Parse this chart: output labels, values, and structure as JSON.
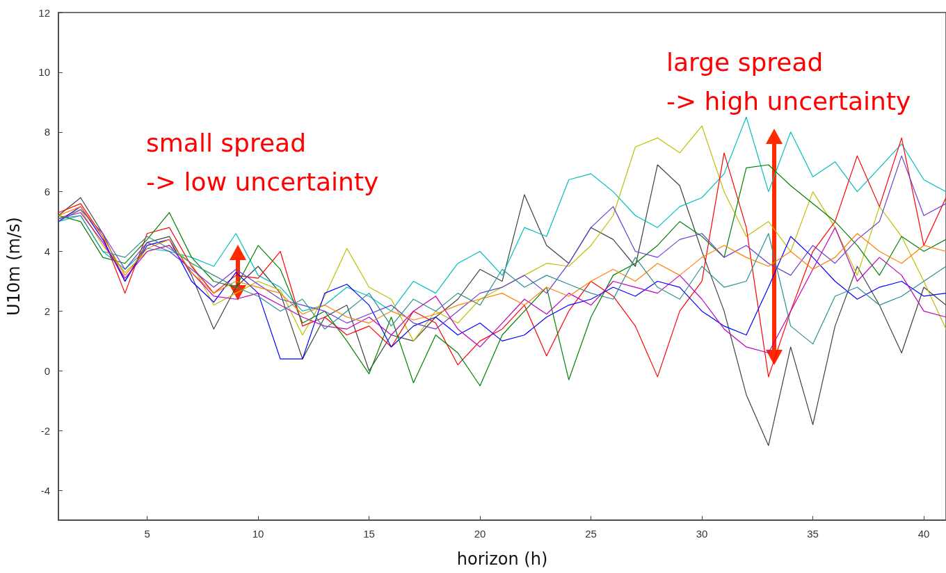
{
  "chart_data": {
    "type": "line",
    "xlabel": "horizon (h)",
    "ylabel": "U10m (m/s)",
    "x": [
      1,
      2,
      3,
      4,
      5,
      6,
      7,
      8,
      9,
      10,
      11,
      12,
      13,
      14,
      15,
      16,
      17,
      18,
      19,
      20,
      21,
      22,
      23,
      24,
      25,
      26,
      27,
      28,
      29,
      30,
      31,
      32,
      33,
      34,
      35,
      36,
      37,
      38,
      39,
      40,
      41
    ],
    "xlim": [
      1,
      41
    ],
    "xticks": [
      5,
      10,
      15,
      20,
      25,
      30,
      35,
      40
    ],
    "ylim": [
      -5,
      12
    ],
    "yticks": [
      -4,
      -2,
      0,
      2,
      4,
      6,
      8,
      10,
      12
    ],
    "grid": false,
    "marker": "none",
    "line_style": "solid",
    "annotations": [
      "small spread\n-> low uncertainty",
      "large spread\n-> high uncertainty"
    ],
    "series": [
      {
        "color": "#404040",
        "values": [
          5.2,
          5.8,
          4.6,
          3.0,
          4.3,
          4.5,
          3.2,
          1.4,
          2.8,
          3.5,
          2.6,
          0.4,
          1.8,
          2.2,
          0.0,
          1.2,
          1.0,
          1.8,
          2.4,
          3.4,
          3.0,
          5.9,
          4.2,
          3.6,
          4.8,
          4.4,
          3.5,
          6.9,
          6.2,
          4.0,
          2.0,
          -0.8,
          -2.5,
          0.8,
          -1.8,
          1.5,
          3.5,
          2.2,
          0.6,
          2.8,
          2.2
        ]
      },
      {
        "color": "#00bfbf",
        "values": [
          5.0,
          5.2,
          4.0,
          3.4,
          4.1,
          4.0,
          3.8,
          3.5,
          4.6,
          3.2,
          2.8,
          2.0,
          2.2,
          2.8,
          2.5,
          2.0,
          3.0,
          2.6,
          3.6,
          4.0,
          3.2,
          4.8,
          4.5,
          6.4,
          6.6,
          6.0,
          5.2,
          4.8,
          5.5,
          5.8,
          6.6,
          8.5,
          6.0,
          8.0,
          6.5,
          7.0,
          6.0,
          6.8,
          7.6,
          6.4,
          6.0
        ]
      },
      {
        "color": "#bfbf00",
        "values": [
          5.1,
          5.4,
          4.2,
          3.3,
          4.0,
          4.2,
          3.6,
          2.2,
          2.6,
          3.0,
          2.7,
          1.2,
          2.5,
          4.1,
          2.8,
          2.4,
          1.0,
          2.0,
          1.6,
          2.4,
          2.8,
          3.2,
          3.6,
          3.5,
          4.2,
          5.2,
          7.5,
          7.8,
          7.3,
          8.2,
          6.0,
          4.5,
          5.0,
          4.0,
          6.0,
          4.8,
          3.2,
          5.5,
          4.5,
          3.0,
          1.4
        ]
      },
      {
        "color": "#ff0000",
        "values": [
          5.3,
          5.6,
          4.5,
          2.6,
          4.6,
          4.8,
          3.5,
          2.6,
          3.2,
          3.1,
          4.0,
          1.5,
          1.8,
          1.2,
          1.5,
          0.8,
          2.0,
          1.6,
          0.2,
          1.0,
          1.4,
          2.2,
          0.5,
          2.0,
          3.0,
          2.5,
          1.5,
          -0.2,
          2.0,
          3.0,
          7.3,
          4.8,
          -0.2,
          2.0,
          4.0,
          5.0,
          7.2,
          5.5,
          7.8,
          4.2,
          5.8
        ]
      },
      {
        "color": "#0000ff",
        "values": [
          5.0,
          5.5,
          4.4,
          3.0,
          4.2,
          4.4,
          3.0,
          2.3,
          3.3,
          2.6,
          0.4,
          0.4,
          2.6,
          2.9,
          2.2,
          0.8,
          1.5,
          1.8,
          1.2,
          1.6,
          1.0,
          1.2,
          1.8,
          2.2,
          2.4,
          2.8,
          2.5,
          3.0,
          2.8,
          2.0,
          1.5,
          1.2,
          2.8,
          4.5,
          3.8,
          3.0,
          2.4,
          2.8,
          3.0,
          2.5,
          2.6
        ]
      },
      {
        "color": "#008000",
        "values": [
          5.2,
          5.0,
          3.8,
          3.6,
          4.4,
          5.3,
          3.8,
          3.0,
          2.8,
          4.2,
          3.4,
          1.6,
          2.0,
          1.0,
          -0.1,
          1.8,
          -0.4,
          1.2,
          0.6,
          -0.5,
          1.2,
          2.0,
          2.8,
          -0.3,
          1.8,
          3.2,
          3.6,
          4.2,
          5.0,
          4.5,
          3.8,
          6.8,
          6.9,
          6.2,
          5.6,
          5.0,
          4.2,
          3.2,
          4.5,
          4.0,
          4.4
        ]
      },
      {
        "color": "#bf00bf",
        "values": [
          5.1,
          5.3,
          4.3,
          3.1,
          4.0,
          4.2,
          3.3,
          2.5,
          2.4,
          2.6,
          2.2,
          1.8,
          1.5,
          1.4,
          1.8,
          1.2,
          2.0,
          2.5,
          1.4,
          0.8,
          1.6,
          2.4,
          1.9,
          2.6,
          2.2,
          3.0,
          2.8,
          2.6,
          3.2,
          2.4,
          1.4,
          0.8,
          0.6,
          2.0,
          3.4,
          4.8,
          3.0,
          3.8,
          3.2,
          2.0,
          1.8
        ]
      },
      {
        "color": "#6a3fd0",
        "values": [
          5.0,
          5.4,
          4.6,
          3.4,
          4.3,
          4.0,
          3.4,
          2.8,
          3.4,
          2.9,
          2.4,
          2.2,
          2.0,
          1.6,
          1.9,
          2.2,
          1.6,
          1.4,
          2.0,
          2.6,
          2.8,
          3.2,
          2.6,
          3.6,
          4.8,
          5.5,
          4.0,
          3.8,
          4.4,
          4.6,
          3.8,
          4.2,
          3.6,
          3.2,
          4.2,
          3.6,
          4.4,
          5.0,
          7.2,
          5.2,
          5.6
        ]
      },
      {
        "color": "#ff8000",
        "values": [
          5.2,
          5.5,
          4.5,
          3.2,
          4.1,
          4.4,
          3.3,
          2.6,
          3.0,
          2.8,
          2.6,
          1.9,
          2.2,
          1.8,
          1.6,
          2.0,
          1.7,
          1.9,
          2.2,
          2.4,
          2.6,
          2.2,
          2.8,
          2.5,
          3.0,
          3.4,
          3.0,
          3.6,
          3.2,
          3.8,
          4.2,
          3.8,
          3.5,
          4.0,
          3.4,
          3.8,
          4.6,
          4.0,
          3.6,
          4.2,
          4.0
        ]
      },
      {
        "color": "#2f8f8f",
        "values": [
          5.1,
          5.2,
          4.0,
          3.8,
          4.5,
          4.1,
          3.6,
          3.2,
          2.8,
          2.5,
          2.0,
          2.4,
          1.4,
          2.0,
          2.6,
          1.5,
          2.4,
          2.0,
          2.6,
          2.2,
          3.4,
          2.8,
          3.2,
          2.9,
          2.6,
          2.4,
          3.8,
          2.8,
          2.4,
          3.5,
          2.8,
          3.0,
          4.6,
          1.5,
          0.9,
          2.5,
          2.8,
          2.2,
          2.5,
          3.0,
          3.5
        ]
      }
    ]
  }
}
